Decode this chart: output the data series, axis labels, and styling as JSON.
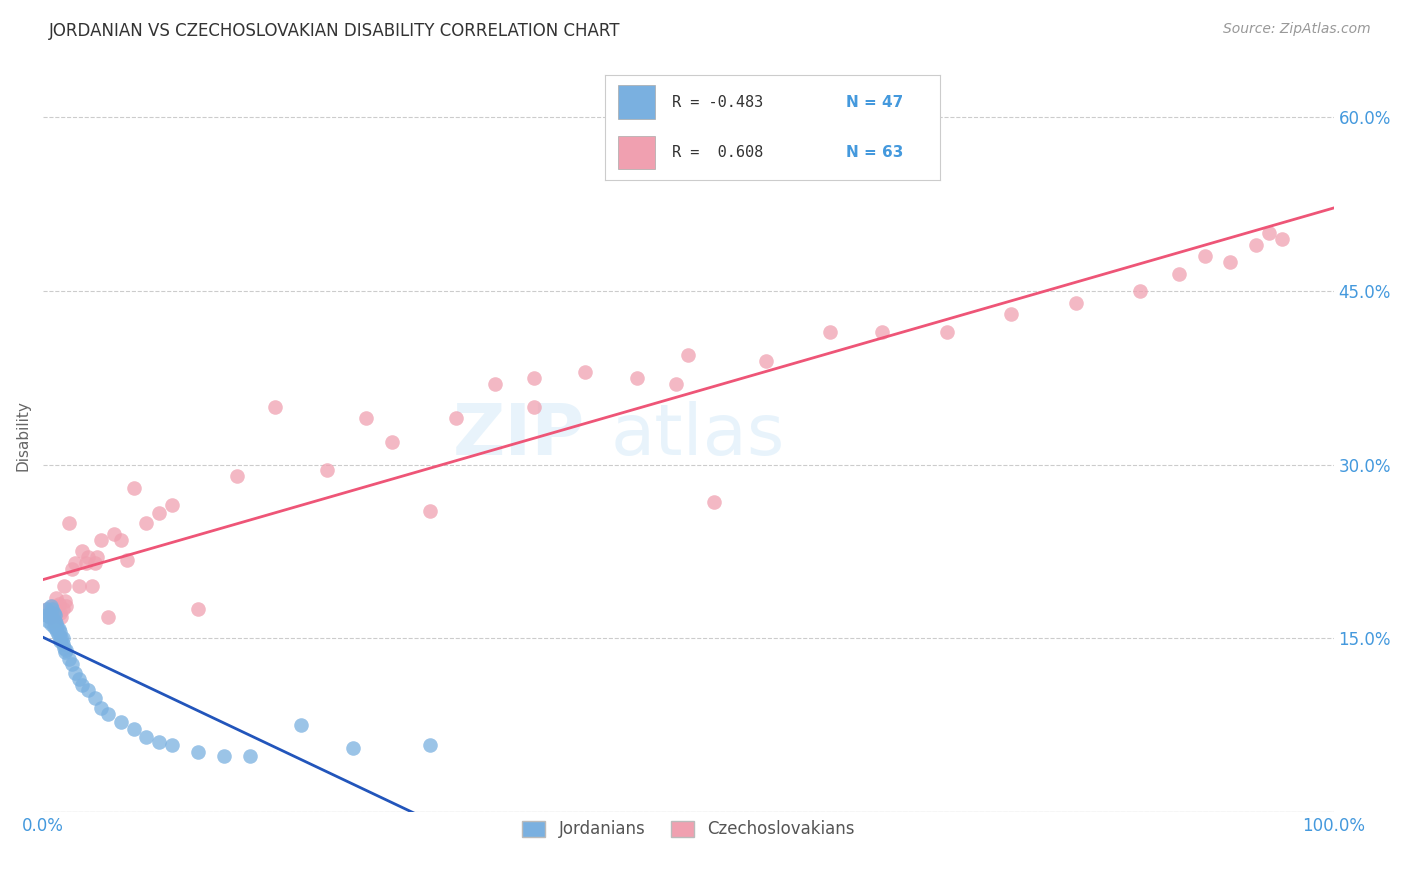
{
  "title": "JORDANIAN VS CZECHOSLOVAKIAN DISABILITY CORRELATION CHART",
  "source": "Source: ZipAtlas.com",
  "ylabel": "Disability",
  "xlim": [
    0.0,
    1.0
  ],
  "ylim": [
    0.0,
    0.65
  ],
  "ytick_vals": [
    0.15,
    0.3,
    0.45,
    0.6
  ],
  "ytick_labels": [
    "15.0%",
    "30.0%",
    "45.0%",
    "60.0%"
  ],
  "xtick_vals": [
    0.0,
    1.0
  ],
  "xtick_labels": [
    "0.0%",
    "100.0%"
  ],
  "grid_color": "#cccccc",
  "background_color": "#ffffff",
  "jordanian_color": "#7ab0e0",
  "czechoslovakian_color": "#f0a0b0",
  "jordanian_line_color": "#2255bb",
  "czechoslovakian_line_color": "#ee5577",
  "tick_color": "#4499dd",
  "jordanian_scatter_x": [
    0.002,
    0.003,
    0.004,
    0.005,
    0.005,
    0.006,
    0.006,
    0.007,
    0.007,
    0.008,
    0.008,
    0.009,
    0.009,
    0.01,
    0.01,
    0.011,
    0.011,
    0.012,
    0.012,
    0.013,
    0.013,
    0.014,
    0.015,
    0.015,
    0.016,
    0.017,
    0.018,
    0.02,
    0.022,
    0.025,
    0.028,
    0.03,
    0.035,
    0.04,
    0.045,
    0.05,
    0.06,
    0.07,
    0.08,
    0.09,
    0.1,
    0.12,
    0.14,
    0.16,
    0.2,
    0.24,
    0.3
  ],
  "jordanian_scatter_y": [
    0.17,
    0.175,
    0.165,
    0.172,
    0.168,
    0.178,
    0.162,
    0.175,
    0.168,
    0.172,
    0.16,
    0.165,
    0.17,
    0.158,
    0.163,
    0.155,
    0.16,
    0.152,
    0.158,
    0.148,
    0.155,
    0.15,
    0.145,
    0.15,
    0.142,
    0.138,
    0.14,
    0.132,
    0.128,
    0.12,
    0.115,
    0.11,
    0.105,
    0.098,
    0.09,
    0.085,
    0.078,
    0.072,
    0.065,
    0.06,
    0.058,
    0.052,
    0.048,
    0.048,
    0.075,
    0.055,
    0.058
  ],
  "czechoslovakian_scatter_x": [
    0.003,
    0.005,
    0.006,
    0.007,
    0.008,
    0.009,
    0.01,
    0.011,
    0.012,
    0.013,
    0.014,
    0.015,
    0.016,
    0.017,
    0.018,
    0.02,
    0.022,
    0.025,
    0.028,
    0.03,
    0.033,
    0.035,
    0.038,
    0.04,
    0.042,
    0.045,
    0.05,
    0.055,
    0.06,
    0.065,
    0.07,
    0.08,
    0.09,
    0.1,
    0.12,
    0.15,
    0.18,
    0.22,
    0.27,
    0.32,
    0.38,
    0.42,
    0.46,
    0.5,
    0.52,
    0.56,
    0.61,
    0.65,
    0.7,
    0.75,
    0.8,
    0.85,
    0.88,
    0.9,
    0.92,
    0.94,
    0.96,
    0.49,
    0.38,
    0.35,
    0.3,
    0.25,
    0.95
  ],
  "czechoslovakian_scatter_y": [
    0.175,
    0.168,
    0.172,
    0.178,
    0.165,
    0.17,
    0.185,
    0.178,
    0.18,
    0.172,
    0.168,
    0.175,
    0.195,
    0.182,
    0.178,
    0.25,
    0.21,
    0.215,
    0.195,
    0.225,
    0.215,
    0.22,
    0.195,
    0.215,
    0.22,
    0.235,
    0.168,
    0.24,
    0.235,
    0.218,
    0.28,
    0.25,
    0.258,
    0.265,
    0.175,
    0.29,
    0.35,
    0.295,
    0.32,
    0.34,
    0.35,
    0.38,
    0.375,
    0.395,
    0.268,
    0.39,
    0.415,
    0.415,
    0.415,
    0.43,
    0.44,
    0.45,
    0.465,
    0.48,
    0.475,
    0.49,
    0.495,
    0.37,
    0.375,
    0.37,
    0.26,
    0.34,
    0.5
  ],
  "legend_r_jordan": "R = -0.483",
  "legend_n_jordan": "N = 47",
  "legend_r_czech": "R =  0.608",
  "legend_n_czech": "N = 63"
}
